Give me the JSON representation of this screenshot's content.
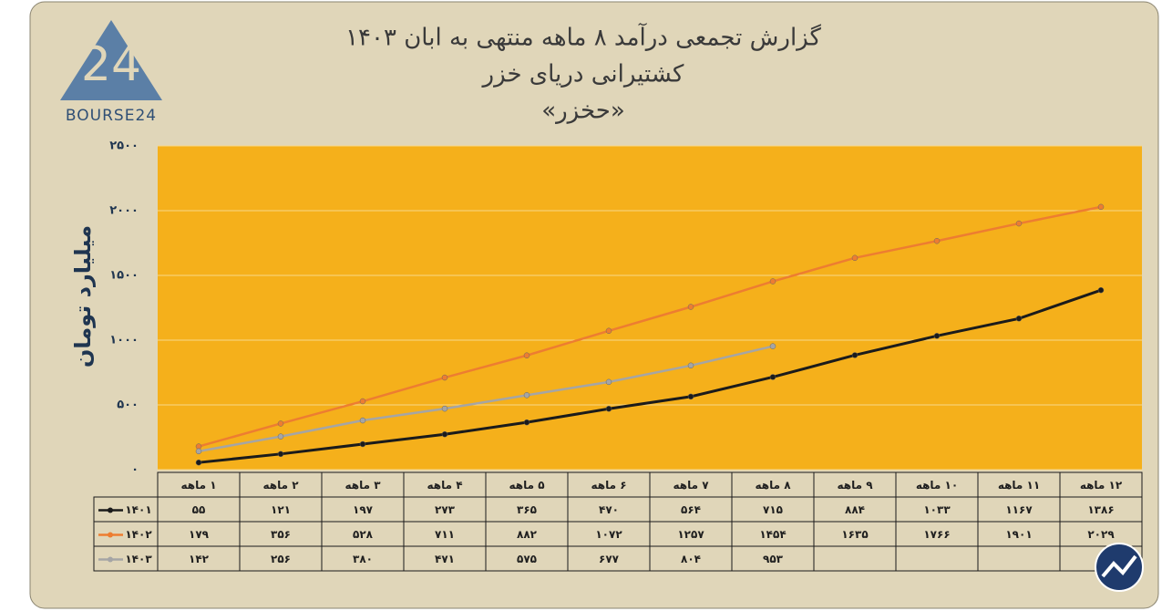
{
  "logo": {
    "mark": "24",
    "text": "BOURSE24"
  },
  "chart_data": {
    "type": "line",
    "title": "گزارش تجمعی درآمد ۸ ماهه منتهی به ابان ۱۴۰۳",
    "subtitle": "کشتیرانی دریای خزر",
    "subtitle2": "«حخزر»",
    "y_label": "میلیارد تومان",
    "categories": [
      "۱ ماهه",
      "۲ ماهه",
      "۳ ماهه",
      "۴ ماهه",
      "۵ ماهه",
      "۶ ماهه",
      "۷ ماهه",
      "۸ ماهه",
      "۹ ماهه",
      "۱۰ ماهه",
      "۱۱ ماهه",
      "۱۲ ماهه"
    ],
    "ylim": [
      0,
      2500
    ],
    "yticks": [
      {
        "value": 0,
        "label": "۰"
      },
      {
        "value": 500,
        "label": "۵۰۰"
      },
      {
        "value": 1000,
        "label": "۱۰۰۰"
      },
      {
        "value": 1500,
        "label": "۱۵۰۰"
      },
      {
        "value": 2000,
        "label": "۲۰۰۰"
      },
      {
        "value": 2500,
        "label": "۲۵۰۰"
      }
    ],
    "grid": true,
    "plot_color": "#f5b01b",
    "series": [
      {
        "name": "۱۴۰۱",
        "color": "#1b1b1b",
        "values": [
          55,
          121,
          197,
          273,
          365,
          470,
          564,
          715,
          884,
          1033,
          1167,
          1386
        ],
        "value_labels": [
          "۵۵",
          "۱۲۱",
          "۱۹۷",
          "۲۷۳",
          "۳۶۵",
          "۴۷۰",
          "۵۶۴",
          "۷۱۵",
          "۸۸۴",
          "۱۰۳۳",
          "۱۱۶۷",
          "۱۳۸۶"
        ]
      },
      {
        "name": "۱۴۰۲",
        "color": "#ed7d31",
        "values": [
          179,
          356,
          528,
          711,
          882,
          1072,
          1257,
          1454,
          1635,
          1766,
          1901,
          2029
        ],
        "value_labels": [
          "۱۷۹",
          "۳۵۶",
          "۵۲۸",
          "۷۱۱",
          "۸۸۲",
          "۱۰۷۲",
          "۱۲۵۷",
          "۱۴۵۴",
          "۱۶۳۵",
          "۱۷۶۶",
          "۱۹۰۱",
          "۲۰۲۹"
        ]
      },
      {
        "name": "۱۴۰۳",
        "color": "#a5a5a5",
        "values": [
          142,
          256,
          380,
          471,
          575,
          677,
          804,
          953,
          null,
          null,
          null,
          null
        ],
        "value_labels": [
          "۱۴۲",
          "۲۵۶",
          "۳۸۰",
          "۴۷۱",
          "۵۷۵",
          "۶۷۷",
          "۸۰۴",
          "۹۵۳",
          null,
          null,
          null,
          null
        ]
      }
    ]
  }
}
